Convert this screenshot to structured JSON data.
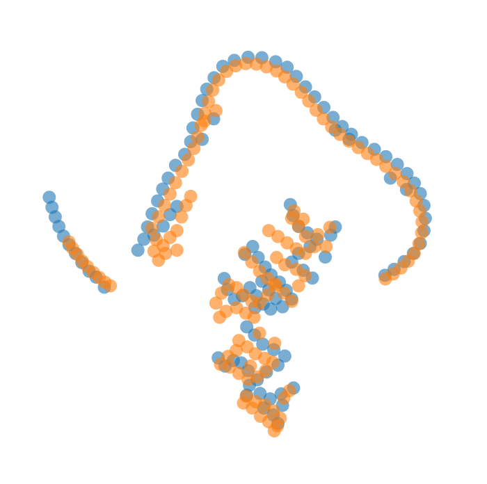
{
  "chart_data": {
    "type": "scatter",
    "title": "",
    "xlabel": "",
    "ylabel": "",
    "axes_visible": false,
    "grid": false,
    "legend": "none",
    "xlim": [
      0,
      100
    ],
    "ylim": [
      0,
      100
    ],
    "series": [
      {
        "color": "#1f77b4",
        "opacity": 0.6,
        "points": [
          [
            7.7,
            59.8
          ],
          [
            8.3,
            57.6
          ],
          [
            9.0,
            55.5
          ],
          [
            9.8,
            53.4
          ],
          [
            10.8,
            51.3
          ],
          [
            12.0,
            49.4
          ],
          [
            13.4,
            47.5
          ],
          [
            14.8,
            45.5
          ],
          [
            16.4,
            43.6
          ],
          [
            17.9,
            42.3
          ],
          [
            19.7,
            40.1
          ],
          [
            27.0,
            48.2
          ],
          [
            28.3,
            50.6
          ],
          [
            29.1,
            53.3
          ],
          [
            30.1,
            56.2
          ],
          [
            31.3,
            59.0
          ],
          [
            32.4,
            61.6
          ],
          [
            33.6,
            64.0
          ],
          [
            35.2,
            66.8
          ],
          [
            37.2,
            69.2
          ],
          [
            38.5,
            72.0
          ],
          [
            39.0,
            75.0
          ],
          [
            40.0,
            78.0
          ],
          [
            41.0,
            81.0
          ],
          [
            42.0,
            83.5
          ],
          [
            43.6,
            86.0
          ],
          [
            45.5,
            88.5
          ],
          [
            48.0,
            89.8
          ],
          [
            51.0,
            90.5
          ],
          [
            54.0,
            90.4
          ],
          [
            57.0,
            89.5
          ],
          [
            59.5,
            88.3
          ],
          [
            61.5,
            86.3
          ],
          [
            63.5,
            84.0
          ],
          [
            65.5,
            81.8
          ],
          [
            67.5,
            79.5
          ],
          [
            69.5,
            77.3
          ],
          [
            71.5,
            75.3
          ],
          [
            73.5,
            73.6
          ],
          [
            75.8,
            71.8
          ],
          [
            78.5,
            70.3
          ],
          [
            81.0,
            68.7
          ],
          [
            83.5,
            67.0
          ],
          [
            85.6,
            65.0
          ],
          [
            87.2,
            62.9
          ],
          [
            88.5,
            60.6
          ],
          [
            89.3,
            58.0
          ],
          [
            89.6,
            55.2
          ],
          [
            89.3,
            52.5
          ],
          [
            88.5,
            49.7
          ],
          [
            87.0,
            47.5
          ],
          [
            85.0,
            45.7
          ],
          [
            82.8,
            44.0
          ],
          [
            80.8,
            42.7
          ],
          [
            30.5,
            51.5
          ],
          [
            32.5,
            53.5
          ],
          [
            34.0,
            56.0
          ],
          [
            35.5,
            57.8
          ],
          [
            41.0,
            72.5
          ],
          [
            43.5,
            77.0
          ],
          [
            70.0,
            74.5
          ],
          [
            73.0,
            72.5
          ],
          [
            82.0,
            64.0
          ],
          [
            85.5,
            61.5
          ],
          [
            60.2,
            58.2
          ],
          [
            60.8,
            55.8
          ],
          [
            62.0,
            53.4
          ],
          [
            63.9,
            52.0
          ],
          [
            66.0,
            50.6
          ],
          [
            64.5,
            49.0
          ],
          [
            62.0,
            47.5
          ],
          [
            60.5,
            45.6
          ],
          [
            63.0,
            43.8
          ],
          [
            65.0,
            42.1
          ],
          [
            67.8,
            46.7
          ],
          [
            69.0,
            51.5
          ],
          [
            70.0,
            53.3
          ],
          [
            50.3,
            47.3
          ],
          [
            52.0,
            49.0
          ],
          [
            53.2,
            46.6
          ],
          [
            54.7,
            44.5
          ],
          [
            56.0,
            42.8
          ],
          [
            57.8,
            41.2
          ],
          [
            59.3,
            39.4
          ],
          [
            60.5,
            37.5
          ],
          [
            58.5,
            35.8
          ],
          [
            57.0,
            37.6
          ],
          [
            55.5,
            39.5
          ],
          [
            54.0,
            41.4
          ],
          [
            45.8,
            42.0
          ],
          [
            46.5,
            39.6
          ],
          [
            48.0,
            37.4
          ],
          [
            49.8,
            38.2
          ],
          [
            51.4,
            40.0
          ],
          [
            52.8,
            38.2
          ],
          [
            54.3,
            36.4
          ],
          [
            55.9,
            35.3
          ],
          [
            52.5,
            35.6
          ],
          [
            50.7,
            31.4
          ],
          [
            52.4,
            29.6
          ],
          [
            54.2,
            27.6
          ],
          [
            56.6,
            26.4
          ],
          [
            59.0,
            25.0
          ],
          [
            57.5,
            23.0
          ],
          [
            55.0,
            21.5
          ],
          [
            53.0,
            19.8
          ],
          [
            51.0,
            21.8
          ],
          [
            49.5,
            23.5
          ],
          [
            47.8,
            24.0
          ],
          [
            46.0,
            22.8
          ],
          [
            44.5,
            24.6
          ],
          [
            51.3,
            18.6
          ],
          [
            53.6,
            16.8
          ],
          [
            55.8,
            15.6
          ],
          [
            58.2,
            16.7
          ],
          [
            60.9,
            18.0
          ],
          [
            58.5,
            14.2
          ],
          [
            56.5,
            12.1
          ],
          [
            54.4,
            13.6
          ],
          [
            50.7,
            16.4
          ],
          [
            57.5,
            10.2
          ]
        ]
      },
      {
        "color": "#ff7f0e",
        "opacity": 0.6,
        "points": [
          [
            12.0,
            50.0
          ],
          [
            12.8,
            48.6
          ],
          [
            13.8,
            47.3
          ],
          [
            14.9,
            45.8
          ],
          [
            16.0,
            44.6
          ],
          [
            17.3,
            43.3
          ],
          [
            18.6,
            42.2
          ],
          [
            19.8,
            41.2
          ],
          [
            21.0,
            40.4
          ],
          [
            31.5,
            55.5
          ],
          [
            32.8,
            58.0
          ],
          [
            34.0,
            60.5
          ],
          [
            35.2,
            63.0
          ],
          [
            36.6,
            65.5
          ],
          [
            38.0,
            68.0
          ],
          [
            39.2,
            70.5
          ],
          [
            40.0,
            73.0
          ],
          [
            40.8,
            75.6
          ],
          [
            41.6,
            78.2
          ],
          [
            42.4,
            80.8
          ],
          [
            43.3,
            83.3
          ],
          [
            44.6,
            85.5
          ],
          [
            46.3,
            87.4
          ],
          [
            48.3,
            88.6
          ],
          [
            50.5,
            89.1
          ],
          [
            52.8,
            89.0
          ],
          [
            55.0,
            88.4
          ],
          [
            57.2,
            87.5
          ],
          [
            59.0,
            86.2
          ],
          [
            60.8,
            84.6
          ],
          [
            62.6,
            82.8
          ],
          [
            64.2,
            80.9
          ],
          [
            65.8,
            78.9
          ],
          [
            67.4,
            77.0
          ],
          [
            69.2,
            75.2
          ],
          [
            71.0,
            73.6
          ],
          [
            73.0,
            72.1
          ],
          [
            75.0,
            70.7
          ],
          [
            77.0,
            69.4
          ],
          [
            79.0,
            68.1
          ],
          [
            81.0,
            66.6
          ],
          [
            83.0,
            65.0
          ],
          [
            84.8,
            63.2
          ],
          [
            86.4,
            61.2
          ],
          [
            87.6,
            59.0
          ],
          [
            88.4,
            56.8
          ],
          [
            88.9,
            54.4
          ],
          [
            88.8,
            52.0
          ],
          [
            88.2,
            49.6
          ],
          [
            87.2,
            47.5
          ],
          [
            85.9,
            45.8
          ],
          [
            84.3,
            44.3
          ],
          [
            82.6,
            43.0
          ],
          [
            80.9,
            41.9
          ],
          [
            30.0,
            53.0
          ],
          [
            31.0,
            50.5
          ],
          [
            32.5,
            49.2
          ],
          [
            34.0,
            51.0
          ],
          [
            35.5,
            52.5
          ],
          [
            33.0,
            47.5
          ],
          [
            35.5,
            48.2
          ],
          [
            31.5,
            46.0
          ],
          [
            30.5,
            48.0
          ],
          [
            36.5,
            55.5
          ],
          [
            37.5,
            58.0
          ],
          [
            38.5,
            60.0
          ],
          [
            41.5,
            76.5
          ],
          [
            44.0,
            78.8
          ],
          [
            55.5,
            52.5
          ],
          [
            57.5,
            51.2
          ],
          [
            59.5,
            49.8
          ],
          [
            61.5,
            48.5
          ],
          [
            63.5,
            47.5
          ],
          [
            65.5,
            49.0
          ],
          [
            63.5,
            51.2
          ],
          [
            62.0,
            53.5
          ],
          [
            60.5,
            55.2
          ],
          [
            61.0,
            56.8
          ],
          [
            63.0,
            55.0
          ],
          [
            66.2,
            51.6
          ],
          [
            68.8,
            53.2
          ],
          [
            68.0,
            49.0
          ],
          [
            50.2,
            47.7
          ],
          [
            51.8,
            45.6
          ],
          [
            53.5,
            43.6
          ],
          [
            55.2,
            42.0
          ],
          [
            57.0,
            40.4
          ],
          [
            58.8,
            38.8
          ],
          [
            60.5,
            37.0
          ],
          [
            62.0,
            40.4
          ],
          [
            63.4,
            42.6
          ],
          [
            61.5,
            44.0
          ],
          [
            59.0,
            45.0
          ],
          [
            57.2,
            46.6
          ],
          [
            44.0,
            36.6
          ],
          [
            45.2,
            38.8
          ],
          [
            46.8,
            40.6
          ],
          [
            48.5,
            40.0
          ],
          [
            50.0,
            38.4
          ],
          [
            51.8,
            37.0
          ],
          [
            53.5,
            36.6
          ],
          [
            55.3,
            38.4
          ],
          [
            56.8,
            40.8
          ],
          [
            52.3,
            33.5
          ],
          [
            50.5,
            34.4
          ],
          [
            48.5,
            35.6
          ],
          [
            46.2,
            34.8
          ],
          [
            44.8,
            33.5
          ],
          [
            49.0,
            28.4
          ],
          [
            50.8,
            27.0
          ],
          [
            52.6,
            25.5
          ],
          [
            54.6,
            24.5
          ],
          [
            56.4,
            23.6
          ],
          [
            54.8,
            21.8
          ],
          [
            53.0,
            20.4
          ],
          [
            51.0,
            19.9
          ],
          [
            49.0,
            21.2
          ],
          [
            47.0,
            22.6
          ],
          [
            45.0,
            23.2
          ],
          [
            46.6,
            24.9
          ],
          [
            48.4,
            26.2
          ],
          [
            51.5,
            22.8
          ],
          [
            53.5,
            30.0
          ],
          [
            56.8,
            27.8
          ],
          [
            50.6,
            16.2
          ],
          [
            52.6,
            15.0
          ],
          [
            54.6,
            14.3
          ],
          [
            56.5,
            13.0
          ],
          [
            58.0,
            11.4
          ],
          [
            57.4,
            9.7
          ],
          [
            55.5,
            10.6
          ],
          [
            53.7,
            11.8
          ],
          [
            51.9,
            13.6
          ],
          [
            50.0,
            14.7
          ],
          [
            58.8,
            15.8
          ],
          [
            60.0,
            17.4
          ],
          [
            56.7,
            8.6
          ]
        ]
      }
    ]
  }
}
